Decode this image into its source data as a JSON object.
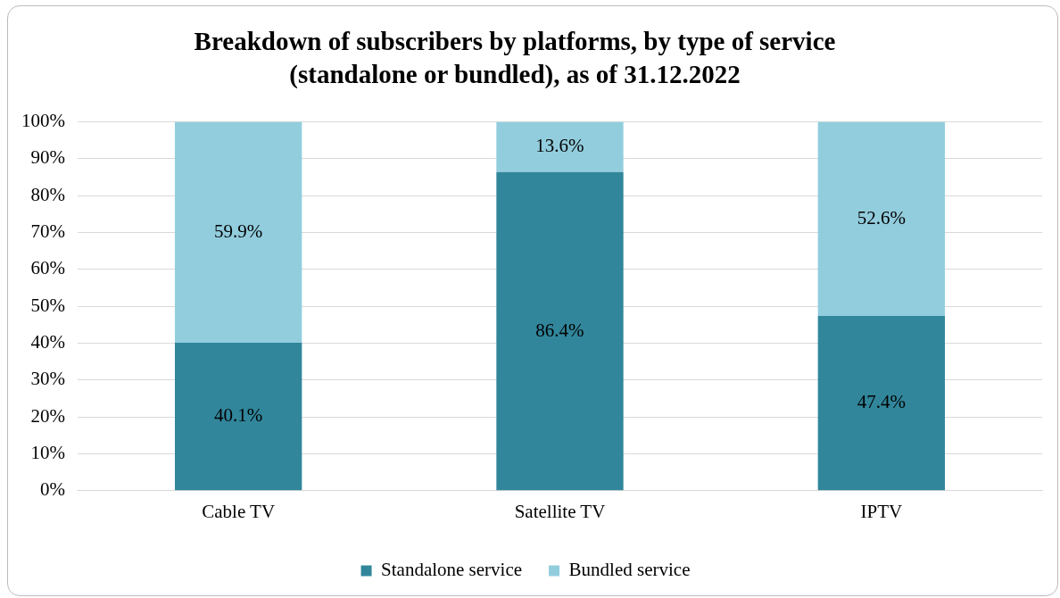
{
  "chart_data": {
    "type": "bar",
    "title": "Breakdown of subscribers by platforms, by type of service (standalone or bundled), as of 31.12.2022",
    "categories": [
      "Cable TV",
      "Satellite TV",
      "IPTV"
    ],
    "stacked": true,
    "series": [
      {
        "name": "Standalone service",
        "color": "#31869b",
        "values": [
          40.1,
          86.4,
          47.4
        ],
        "value_labels": [
          "40.1%",
          "86.4%",
          "47.4%"
        ]
      },
      {
        "name": "Bundled service",
        "color": "#92cddd",
        "values": [
          59.9,
          13.6,
          52.6
        ],
        "value_labels": [
          "59.9%",
          "13.6%",
          "52.6%"
        ]
      }
    ],
    "ylim": [
      0,
      100
    ],
    "yticks": [
      {
        "value": 0,
        "label": "0%"
      },
      {
        "value": 10,
        "label": "10%"
      },
      {
        "value": 20,
        "label": "20%"
      },
      {
        "value": 30,
        "label": "30%"
      },
      {
        "value": 40,
        "label": "40%"
      },
      {
        "value": 50,
        "label": "50%"
      },
      {
        "value": 60,
        "label": "60%"
      },
      {
        "value": 70,
        "label": "70%"
      },
      {
        "value": 80,
        "label": "80%"
      },
      {
        "value": 90,
        "label": "90%"
      },
      {
        "value": 100,
        "label": "100%"
      }
    ],
    "grid": "y",
    "legend": "bottom"
  }
}
